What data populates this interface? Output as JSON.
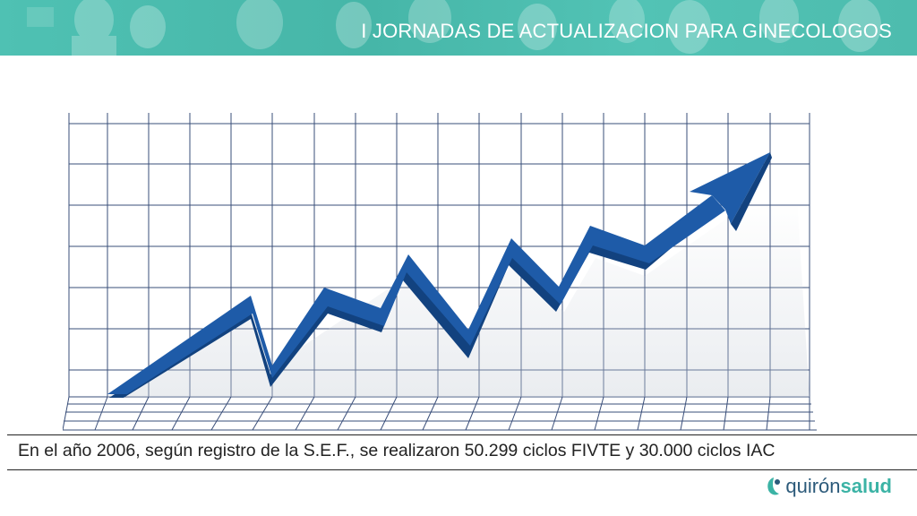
{
  "header": {
    "title": "I JORNADAS DE ACTUALIZACION PARA GINECOLOGOS"
  },
  "slide": {
    "illustration_icon": "rising-trend-arrow-icon",
    "caption": "En el año 2006, según registro de la S.E.F., se realizaron 50.299 ciclos FIVTE y 30.000 ciclos IAC"
  },
  "footer": {
    "logo_word1": "quirón",
    "logo_word2": "salud"
  },
  "colors": {
    "header_bg": "#4dbcae",
    "arrow": "#1e5ba8",
    "grid": "#3a4f7a",
    "logo_dark": "#2c5a7a",
    "logo_accent": "#3bb3a5"
  }
}
